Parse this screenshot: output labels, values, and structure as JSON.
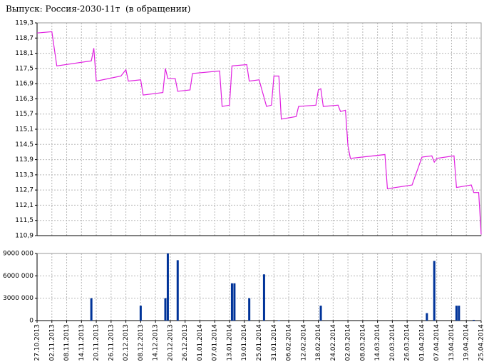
{
  "chart_data": [
    {
      "type": "line",
      "title": "Выпуск: Россия-2030-11т  (в обращении)",
      "x": [
        "27.10.2013",
        "02.11.2013",
        "04.11.2013",
        "18.11.2013",
        "19.11.2013",
        "20.11.2013",
        "30.11.2013",
        "02.12.2013",
        "03.12.2013",
        "08.12.2013",
        "09.12.2013",
        "17.12.2013",
        "18.12.2013",
        "19.12.2013",
        "22.12.2013",
        "23.12.2013",
        "28.12.2013",
        "29.12.2013",
        "09.01.2014",
        "10.01.2014",
        "13.01.2014",
        "14.01.2014",
        "20.01.2014",
        "21.01.2014",
        "25.01.2014",
        "28.01.2014",
        "30.01.2014",
        "31.01.2014",
        "02.02.2014",
        "03.02.2014",
        "09.02.2014",
        "10.02.2014",
        "17.02.2014",
        "18.02.2014",
        "19.02.2014",
        "20.02.2014",
        "26.02.2014",
        "27.02.2014",
        "01.03.2014",
        "02.03.2014",
        "03.03.2014",
        "17.03.2014",
        "18.03.2014",
        "28.03.2014",
        "01.04.2014",
        "05.04.2014",
        "06.04.2014",
        "07.04.2014",
        "14.04.2014",
        "15.04.2014",
        "21.04.2014",
        "22.04.2014",
        "24.04.2014",
        "25.04.2014"
      ],
      "series": [
        {
          "color": "#e020e0",
          "values": [
            118.9,
            118.95,
            117.6,
            117.8,
            118.3,
            117.0,
            117.2,
            117.45,
            117.0,
            117.05,
            116.45,
            116.55,
            117.5,
            117.1,
            117.1,
            116.6,
            116.65,
            117.3,
            117.4,
            116.0,
            116.05,
            117.6,
            117.65,
            117.0,
            117.05,
            116.0,
            116.05,
            117.2,
            117.2,
            115.5,
            115.6,
            116.0,
            116.05,
            116.65,
            116.7,
            116.0,
            116.05,
            115.8,
            115.85,
            114.45,
            113.95,
            114.1,
            112.75,
            112.9,
            114.0,
            114.05,
            113.8,
            113.95,
            114.05,
            112.8,
            112.9,
            112.6,
            112.6,
            110.95
          ]
        }
      ],
      "xlim": [
        "27.10.2013",
        "25.04.2014"
      ],
      "ylim": [
        110.9,
        119.3
      ],
      "yticks": [
        {
          "value": 119.3,
          "label": "119,3"
        },
        {
          "value": 118.7,
          "label": "118,7"
        },
        {
          "value": 118.1,
          "label": "118,1"
        },
        {
          "value": 117.5,
          "label": "117,5"
        },
        {
          "value": 116.9,
          "label": "116,9"
        },
        {
          "value": 116.3,
          "label": "116,3"
        },
        {
          "value": 115.7,
          "label": "115,7"
        },
        {
          "value": 115.1,
          "label": "115,1"
        },
        {
          "value": 114.5,
          "label": "114,5"
        },
        {
          "value": 113.9,
          "label": "113,9"
        },
        {
          "value": 113.3,
          "label": "113,3"
        },
        {
          "value": 112.7,
          "label": "112,7"
        },
        {
          "value": 112.1,
          "label": "112,1"
        },
        {
          "value": 111.5,
          "label": "111,5"
        },
        {
          "value": 110.9,
          "label": "110,9"
        }
      ],
      "grid": true
    },
    {
      "type": "bar",
      "x": [
        "18.11.2013",
        "08.12.2013",
        "18.12.2013",
        "19.12.2013",
        "23.12.2013",
        "14.01.2014",
        "15.01.2014",
        "21.01.2014",
        "27.01.2014",
        "02.02.2014",
        "19.02.2014",
        "03.04.2014",
        "06.04.2014",
        "15.04.2014",
        "16.04.2014",
        "22.04.2014"
      ],
      "values": [
        3000000,
        2000000,
        3000000,
        9000000,
        8100000,
        5000000,
        5000000,
        3000000,
        6200000,
        50000,
        2000000,
        1000000,
        8000000,
        2000000,
        2000000,
        100000
      ],
      "color": "#003399",
      "xlim": [
        "27.10.2013",
        "25.04.2014"
      ],
      "ylim": [
        0,
        9000000
      ],
      "yticks": [
        0,
        {
          "value": 3000000,
          "label": "3000 000"
        },
        {
          "value": 6000000,
          "label": "6000 000"
        },
        {
          "value": 9000000,
          "label": "9000 000"
        }
      ],
      "xticks": [
        "27.10.2013",
        "02.11.2013",
        "08.11.2013",
        "14.11.2013",
        "20.11.2013",
        "26.11.2013",
        "02.12.2013",
        "08.12.2013",
        "14.12.2013",
        "20.12.2013",
        "26.12.2013",
        "01.01.2014",
        "07.01.2014",
        "13.01.2014",
        "19.01.2014",
        "25.01.2014",
        "31.01.2014",
        "06.02.2014",
        "12.02.2014",
        "18.02.2014",
        "24.02.2014",
        "02.03.2014",
        "08.03.2014",
        "14.03.2014",
        "20.03.2014",
        "26.03.2014",
        "01.04.2014",
        "07.04.2014",
        "13.04.2014",
        "19.04.2014",
        "25.04.2014"
      ],
      "grid": true
    }
  ]
}
